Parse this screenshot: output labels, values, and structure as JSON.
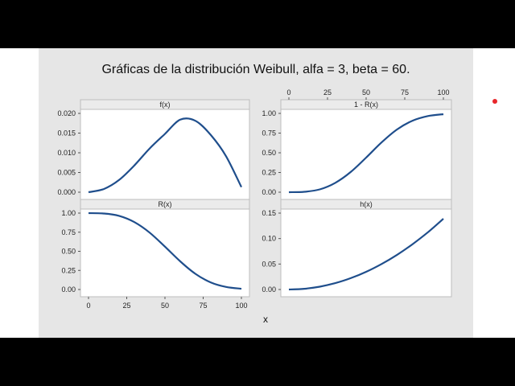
{
  "title": "Gráficas de la distribución Weibull, alfa = 3, beta = 60.",
  "xlabel": "x",
  "colors": {
    "line": "#1f4e8c",
    "panel_bg": "#e6e6e6",
    "plot_bg": "#ffffff",
    "header_bg": "#ebebeb",
    "marker": "#e8262b"
  },
  "chart_data": [
    {
      "type": "line",
      "title": "f(x)",
      "x_ticks": [
        0,
        25,
        50,
        75,
        100
      ],
      "y_ticks": [
        "0.000",
        "0.005",
        "0.010",
        "0.015",
        "0.020"
      ],
      "xlim": [
        0,
        100
      ],
      "ylim": [
        0,
        0.02
      ],
      "series": [
        {
          "x": [
            0,
            10,
            20,
            30,
            40,
            50,
            60,
            70,
            80,
            90,
            100
          ],
          "values": [
            0,
            0.0008,
            0.0031,
            0.0068,
            0.0111,
            0.0148,
            0.0184,
            0.0181,
            0.0145,
            0.0091,
            0.0013
          ]
        }
      ]
    },
    {
      "type": "line",
      "title": "1 - R(x)",
      "x_ticks": [
        0,
        25,
        50,
        75,
        100
      ],
      "y_ticks": [
        "0.00",
        "0.25",
        "0.50",
        "0.75",
        "1.00"
      ],
      "xlim": [
        0,
        100
      ],
      "ylim": [
        0,
        1
      ],
      "series": [
        {
          "x": [
            0,
            10,
            20,
            30,
            40,
            50,
            60,
            70,
            80,
            90,
            100
          ],
          "values": [
            0,
            0.005,
            0.036,
            0.118,
            0.256,
            0.439,
            0.632,
            0.796,
            0.907,
            0.966,
            0.99
          ]
        }
      ]
    },
    {
      "type": "line",
      "title": "R(x)",
      "x_ticks": [
        0,
        25,
        50,
        75,
        100
      ],
      "y_ticks": [
        "0.00",
        "0.25",
        "0.50",
        "0.75",
        "1.00"
      ],
      "xlim": [
        0,
        100
      ],
      "ylim": [
        0,
        1
      ],
      "series": [
        {
          "x": [
            0,
            10,
            20,
            30,
            40,
            50,
            60,
            70,
            80,
            90,
            100
          ],
          "values": [
            1,
            0.995,
            0.964,
            0.882,
            0.744,
            0.561,
            0.368,
            0.204,
            0.093,
            0.034,
            0.01
          ]
        }
      ]
    },
    {
      "type": "line",
      "title": "h(x)",
      "x_ticks": [
        0,
        25,
        50,
        75,
        100
      ],
      "y_ticks": [
        "0.00",
        "0.05",
        "0.10",
        "0.15"
      ],
      "xlim": [
        0,
        100
      ],
      "ylim": [
        0,
        0.15
      ],
      "series": [
        {
          "x": [
            0,
            10,
            20,
            30,
            40,
            50,
            60,
            70,
            80,
            90,
            100
          ],
          "values": [
            0,
            0.0014,
            0.0056,
            0.0125,
            0.0222,
            0.0347,
            0.05,
            0.068,
            0.0889,
            0.1125,
            0.1389
          ]
        }
      ]
    }
  ]
}
